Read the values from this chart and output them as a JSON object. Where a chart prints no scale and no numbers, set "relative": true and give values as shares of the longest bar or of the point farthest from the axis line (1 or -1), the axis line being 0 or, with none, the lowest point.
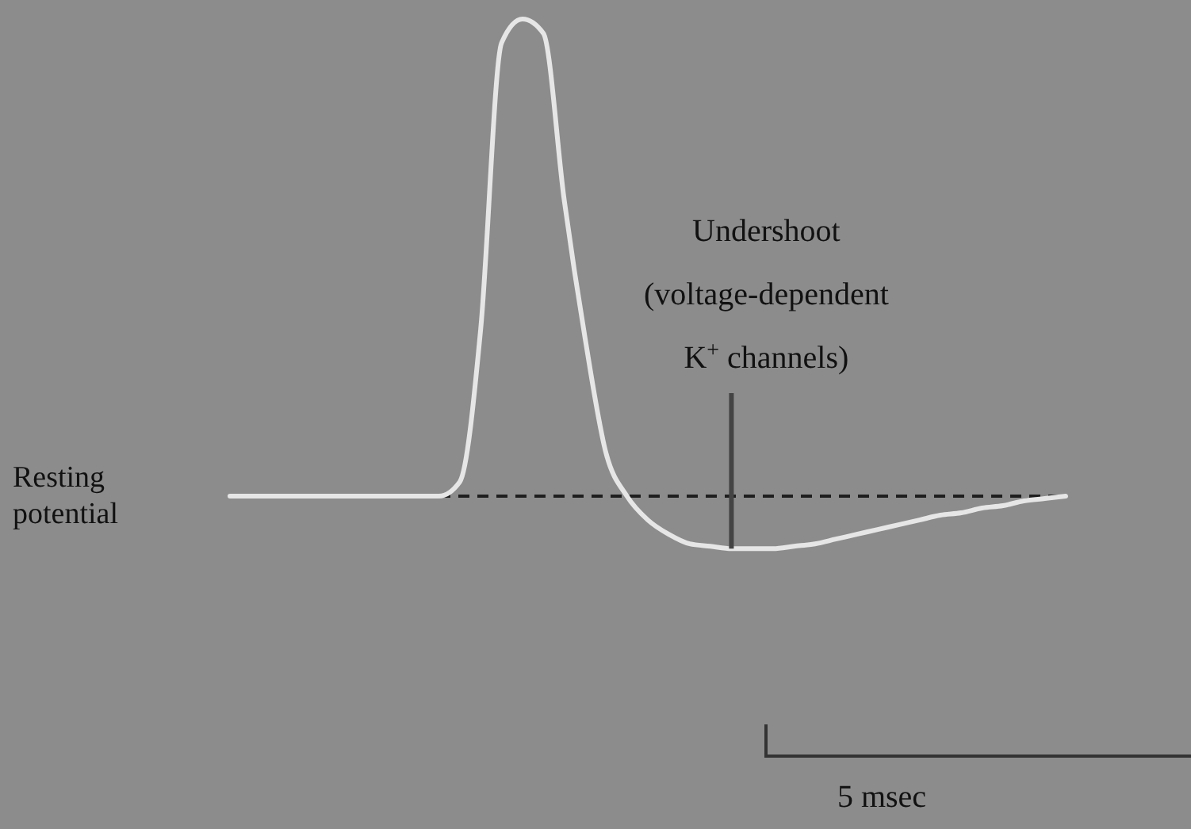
{
  "chart_data": {
    "type": "line",
    "relative": true,
    "categories": [
      null,
      null,
      null,
      null,
      null,
      null,
      null,
      null,
      null,
      null,
      null,
      null,
      null,
      null,
      null,
      null,
      null,
      null,
      null,
      null,
      null,
      null,
      null,
      null,
      null,
      null,
      null,
      null,
      null,
      null,
      null,
      null,
      null,
      null,
      null,
      null,
      null,
      null,
      null,
      null,
      null
    ],
    "series": [
      {
        "color": "#e6e6e6",
        "values": [
          0,
          0,
          0,
          0,
          0,
          0,
          0,
          0,
          0,
          0,
          0,
          0.03,
          0.35,
          0.95,
          1,
          0.97,
          0.62,
          0.33,
          0.09,
          0,
          -0.05,
          -0.08,
          -0.1,
          -0.105,
          -0.11,
          -0.11,
          -0.11,
          -0.105,
          -0.1,
          -0.09,
          -0.08,
          -0.07,
          -0.06,
          -0.05,
          -0.04,
          -0.035,
          -0.025,
          -0.02,
          -0.01,
          -0.005,
          0
        ]
      }
    ],
    "ref_lines": [
      {
        "axis": "y",
        "value": 0,
        "label": "Resting\npotential",
        "line_style": "dashed",
        "color": "#1e1e1e"
      }
    ],
    "annotations": [
      "Undershoot\n(voltage-dependent\nK$^{+}$ channels)",
      "5 msec"
    ]
  }
}
